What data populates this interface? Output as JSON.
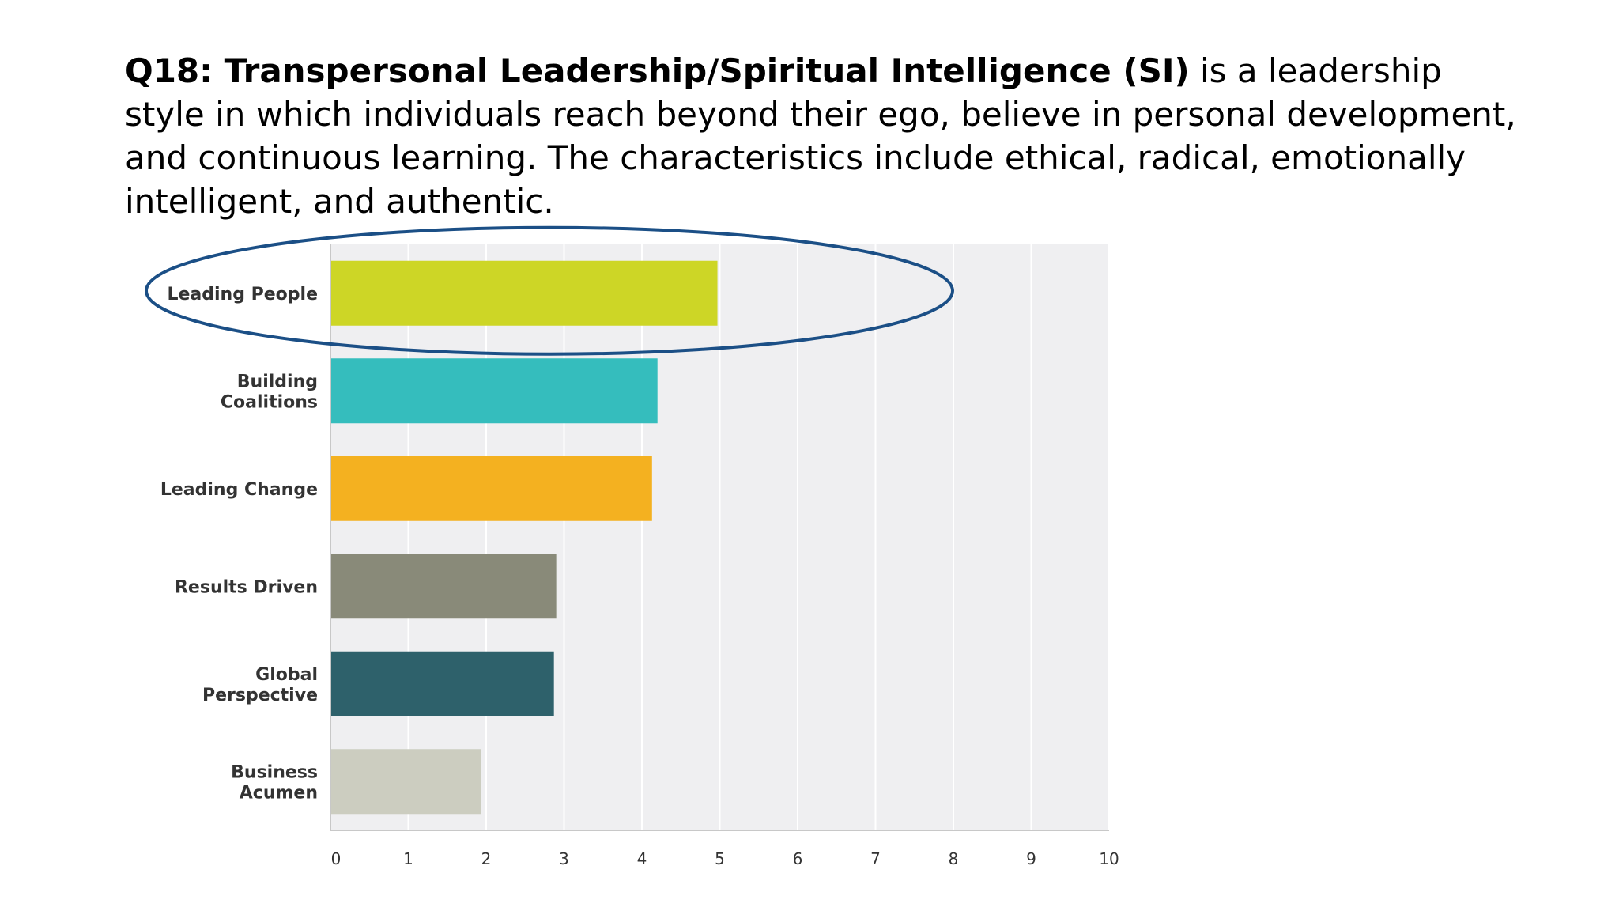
{
  "slide": {
    "title_bold": "Q18: Transpersonal Leadership/Spiritual Intelligence (SI)",
    "title_rest": " is a leadership style in which individuals reach beyond their ego, believe in  personal development, and  continuous learning. The characteristics include  ethical, radical, emotionally intelligent, and authentic."
  },
  "chart_data": {
    "type": "bar",
    "orientation": "horizontal",
    "categories": [
      "Leading People",
      "Building Coalitions",
      "Leading Change",
      "Results Driven",
      "Global Perspective",
      "Business Acumen"
    ],
    "category_lines": [
      [
        "Leading People"
      ],
      [
        "Building",
        "Coalitions"
      ],
      [
        "Leading Change"
      ],
      [
        "Results Driven"
      ],
      [
        "Global",
        "Perspective"
      ],
      [
        "Business",
        "Acumen"
      ]
    ],
    "values": [
      4.97,
      4.2,
      4.13,
      2.9,
      2.87,
      1.93
    ],
    "colors": [
      "#cdd626",
      "#35bdbd",
      "#f4b120",
      "#898a79",
      "#2e616b",
      "#cccdc0"
    ],
    "xlim": [
      0,
      10
    ],
    "xticks": [
      0,
      1,
      2,
      3,
      4,
      5,
      6,
      7,
      8,
      9,
      10
    ],
    "grid": true,
    "plot_bg": "#efeff1",
    "highlight": {
      "category": "Leading People",
      "shape": "ellipse",
      "color": "#1b4f86"
    }
  }
}
